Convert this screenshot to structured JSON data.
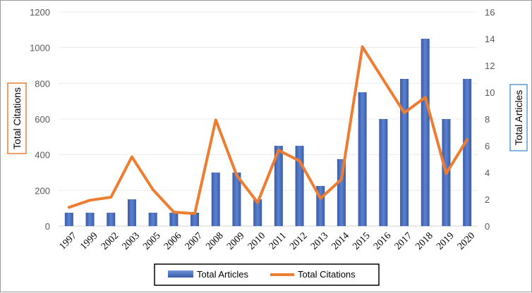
{
  "chart_data": {
    "type": "bar+line",
    "categories": [
      "1997",
      "1999",
      "2002",
      "2003",
      "2005",
      "2006",
      "2007",
      "2008",
      "2009",
      "2010",
      "2011",
      "2012",
      "2013",
      "2014",
      "2015",
      "2016",
      "2017",
      "2018",
      "2019",
      "2020"
    ],
    "series": [
      {
        "name": "Total Articles",
        "type": "bar",
        "axis": "right",
        "color": "#4a6fbf",
        "values": [
          1,
          1,
          1,
          2,
          1,
          1,
          1,
          4,
          4,
          2,
          6,
          6,
          3,
          5,
          10,
          8,
          11,
          14,
          8,
          11
        ]
      },
      {
        "name": "Total Citations",
        "type": "line",
        "axis": "left",
        "color": "#ed7d31",
        "values": [
          105,
          145,
          162,
          388,
          205,
          78,
          70,
          595,
          285,
          132,
          425,
          365,
          155,
          262,
          1005,
          820,
          635,
          722,
          295,
          485
        ]
      }
    ],
    "y_left": {
      "label": "Total Citations",
      "min": 0,
      "max": 1200,
      "ticks": [
        "0",
        "200",
        "400",
        "600",
        "800",
        "1000",
        "1200"
      ]
    },
    "y_right": {
      "label": "Total Articles",
      "min": 0,
      "max": 16,
      "ticks": [
        "0",
        "2",
        "4",
        "6",
        "8",
        "10",
        "12",
        "14",
        "16"
      ]
    },
    "legend": {
      "placement": "bottom",
      "items": [
        "Total Articles",
        "Total Citations"
      ]
    },
    "colors": {
      "left_title_border": "#ed7d31",
      "right_title_border": "#5b9bd5"
    }
  }
}
